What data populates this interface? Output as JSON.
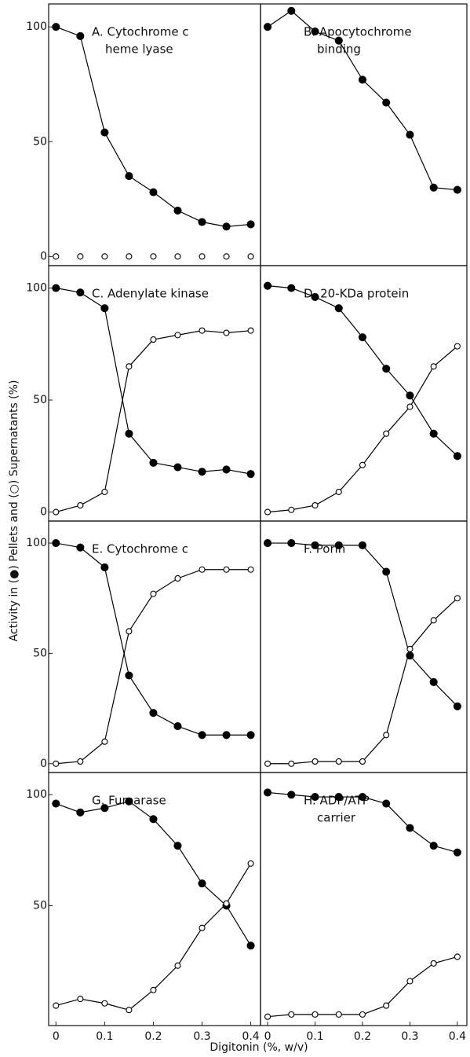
{
  "figure": {
    "ylabel": "Activity in (●) Pellets and (○) Supernatants (%)",
    "xlabel": "Digitonin (%, w/v)"
  },
  "chart_data": [
    {
      "type": "line",
      "title": [
        "A. Cytochrome c",
        "heme lyase"
      ],
      "x": [
        0,
        0.05,
        0.1,
        0.15,
        0.2,
        0.25,
        0.3,
        0.35,
        0.4
      ],
      "xlim": [
        -0.015,
        0.42
      ],
      "ylim": [
        -4,
        110
      ],
      "yticks": [
        0,
        50,
        100
      ],
      "series": [
        {
          "marker": "filled",
          "line": true,
          "color": "#000",
          "values": [
            100,
            96,
            54,
            35,
            28,
            20,
            15,
            13,
            14
          ]
        },
        {
          "marker": "open",
          "line": false,
          "color": "#000",
          "values": [
            0,
            0,
            0,
            0,
            0,
            0,
            0,
            0,
            0
          ]
        }
      ]
    },
    {
      "type": "line",
      "title": [
        "B. Apocytochrome",
        "binding"
      ],
      "x": [
        0,
        0.05,
        0.1,
        0.15,
        0.2,
        0.25,
        0.3,
        0.35,
        0.4
      ],
      "xlim": [
        -0.015,
        0.42
      ],
      "ylim": [
        -4,
        110
      ],
      "series": [
        {
          "marker": "filled",
          "line": true,
          "color": "#000",
          "values": [
            100,
            107,
            98,
            94,
            77,
            67,
            53,
            30,
            29
          ]
        }
      ]
    },
    {
      "type": "line",
      "title": [
        "C. Adenylate kinase"
      ],
      "x": [
        0,
        0.05,
        0.1,
        0.15,
        0.2,
        0.25,
        0.3,
        0.35,
        0.4
      ],
      "xlim": [
        -0.015,
        0.42
      ],
      "ylim": [
        -4,
        110
      ],
      "yticks": [
        0,
        50,
        100
      ],
      "series": [
        {
          "marker": "filled",
          "line": true,
          "color": "#000",
          "values": [
            100,
            98,
            91,
            35,
            22,
            20,
            18,
            19,
            17
          ]
        },
        {
          "marker": "open",
          "line": true,
          "color": "#000",
          "values": [
            0,
            3,
            9,
            65,
            77,
            79,
            81,
            80,
            81
          ]
        }
      ]
    },
    {
      "type": "line",
      "title": [
        "D. 20-KDa protein"
      ],
      "x": [
        0,
        0.05,
        0.1,
        0.15,
        0.2,
        0.25,
        0.3,
        0.35,
        0.4
      ],
      "xlim": [
        -0.015,
        0.42
      ],
      "ylim": [
        -4,
        110
      ],
      "series": [
        {
          "marker": "filled",
          "line": true,
          "color": "#000",
          "values": [
            101,
            100,
            96,
            91,
            78,
            64,
            52,
            35,
            25
          ]
        },
        {
          "marker": "open",
          "line": true,
          "color": "#000",
          "values": [
            0,
            1,
            3,
            9,
            21,
            35,
            47,
            65,
            74
          ]
        }
      ]
    },
    {
      "type": "line",
      "title": [
        "E. Cytochrome c"
      ],
      "x": [
        0,
        0.05,
        0.1,
        0.15,
        0.2,
        0.25,
        0.3,
        0.35,
        0.4
      ],
      "xlim": [
        -0.015,
        0.42
      ],
      "ylim": [
        -4,
        110
      ],
      "yticks": [
        0,
        50,
        100
      ],
      "series": [
        {
          "marker": "filled",
          "line": true,
          "color": "#000",
          "values": [
            100,
            98,
            89,
            40,
            23,
            17,
            13,
            13,
            13
          ]
        },
        {
          "marker": "open",
          "line": true,
          "color": "#000",
          "values": [
            0,
            1,
            10,
            60,
            77,
            84,
            88,
            88,
            88
          ]
        }
      ]
    },
    {
      "type": "line",
      "title": [
        "F. Porin"
      ],
      "x": [
        0,
        0.05,
        0.1,
        0.15,
        0.2,
        0.25,
        0.3,
        0.35,
        0.4
      ],
      "xlim": [
        -0.015,
        0.42
      ],
      "ylim": [
        -4,
        110
      ],
      "series": [
        {
          "marker": "filled",
          "line": true,
          "color": "#000",
          "values": [
            100,
            100,
            99,
            99,
            99,
            87,
            49,
            37,
            26
          ]
        },
        {
          "marker": "open",
          "line": true,
          "color": "#000",
          "values": [
            0,
            0,
            1,
            1,
            1,
            13,
            52,
            65,
            75
          ]
        }
      ]
    },
    {
      "type": "line",
      "title": [
        "G. Fumarase"
      ],
      "x": [
        0,
        0.05,
        0.1,
        0.15,
        0.2,
        0.25,
        0.3,
        0.35,
        0.4
      ],
      "xlim": [
        -0.015,
        0.42
      ],
      "ylim": [
        -4,
        110
      ],
      "yticks": [
        50,
        100
      ],
      "xticks": [
        0,
        0.1,
        0.2,
        0.3,
        0.4
      ],
      "series": [
        {
          "marker": "filled",
          "line": true,
          "color": "#000",
          "values": [
            96,
            92,
            94,
            97,
            89,
            77,
            60,
            50,
            32
          ]
        },
        {
          "marker": "open",
          "line": true,
          "color": "#000",
          "values": [
            5,
            8,
            6,
            3,
            12,
            23,
            40,
            51,
            69
          ]
        }
      ]
    },
    {
      "type": "line",
      "title": [
        "H. ADP/ATP",
        "carrier"
      ],
      "x": [
        0,
        0.05,
        0.1,
        0.15,
        0.2,
        0.25,
        0.3,
        0.35,
        0.4
      ],
      "xlim": [
        -0.015,
        0.42
      ],
      "ylim": [
        -4,
        110
      ],
      "xticks": [
        0,
        0.1,
        0.2,
        0.3,
        0.4
      ],
      "series": [
        {
          "marker": "filled",
          "line": true,
          "color": "#000",
          "values": [
            101,
            100,
            99,
            99,
            99,
            96,
            85,
            77,
            74
          ]
        },
        {
          "marker": "open",
          "line": true,
          "color": "#000",
          "values": [
            0,
            1,
            1,
            1,
            1,
            5,
            16,
            24,
            27
          ]
        }
      ]
    }
  ]
}
